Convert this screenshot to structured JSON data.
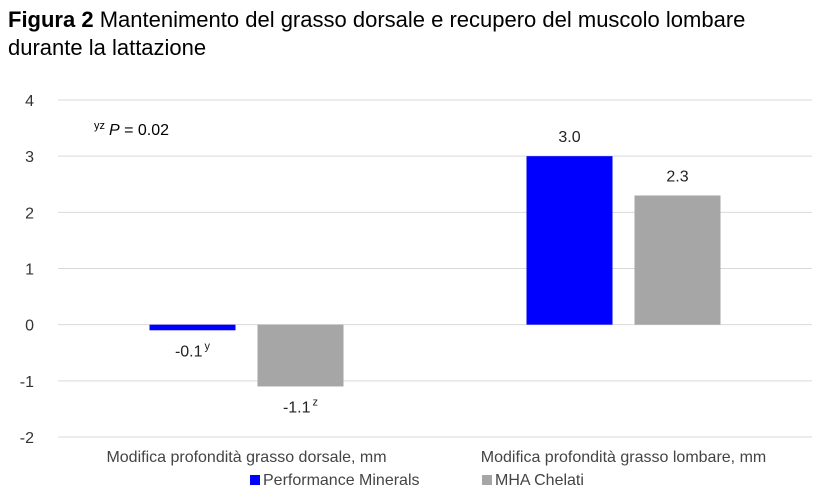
{
  "chart_data": {
    "type": "bar",
    "title_bold": "Figura 2",
    "title_text": "Mantenimento del grasso dorsale e recupero del muscolo lombare durante la lattazione",
    "categories": [
      "Modifica profondità grasso dorsale, mm",
      "Modifica profondità grasso lombare, mm"
    ],
    "series": [
      {
        "name": "Performance Minerals",
        "color": "#0000ff",
        "values": [
          -0.1,
          3.0
        ],
        "labels": [
          "-0.1",
          "3.0"
        ],
        "superscripts": [
          "y",
          ""
        ]
      },
      {
        "name": "MHA Chelati",
        "color": "#a6a6a6",
        "values": [
          -1.1,
          2.3
        ],
        "labels": [
          "-1.1",
          "2.3"
        ],
        "superscripts": [
          "z",
          ""
        ]
      }
    ],
    "ylim": [
      -2,
      4
    ],
    "yticks": [
      -2,
      -1,
      0,
      1,
      2,
      3,
      4
    ],
    "annotation": {
      "superscript": "yz",
      "italic": "P",
      "text": " = 0.02"
    },
    "legend_position": "bottom",
    "grid": true
  }
}
